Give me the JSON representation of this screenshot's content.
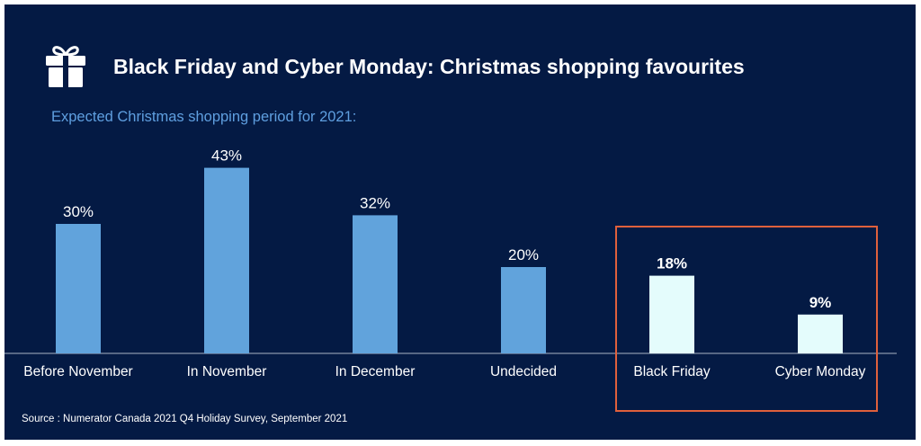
{
  "title": "Black Friday and Cyber Monday: Christmas shopping favourites",
  "subtitle": "Expected Christmas shopping period for 2021:",
  "source": "Source : Numerator Canada 2021 Q4 Holiday Survey, September 2021",
  "header_icon": "gift-icon",
  "colors": {
    "background": "#041a44",
    "bar_default": "#61a3dc",
    "bar_highlight": "#e4fcfc",
    "highlight_box": "#e0603c",
    "text": "#ffffff",
    "subtitle": "#5f9fe0"
  },
  "chart_data": {
    "type": "bar",
    "title": "Black Friday and Cyber Monday: Christmas shopping favourites",
    "subtitle": "Expected Christmas shopping period for 2021:",
    "categories": [
      "Before November",
      "In November",
      "In December",
      "Undecided",
      "Black Friday",
      "Cyber Monday"
    ],
    "values": [
      30,
      43,
      32,
      20,
      18,
      9
    ],
    "value_labels": [
      "30%",
      "43%",
      "32%",
      "20%",
      "18%",
      "9%"
    ],
    "highlighted": [
      false,
      false,
      false,
      false,
      true,
      true
    ],
    "unit": "%",
    "ylim": [
      0,
      45
    ],
    "grid": false,
    "legend": "none",
    "annotation": "highlight box around Black Friday and Cyber Monday"
  }
}
